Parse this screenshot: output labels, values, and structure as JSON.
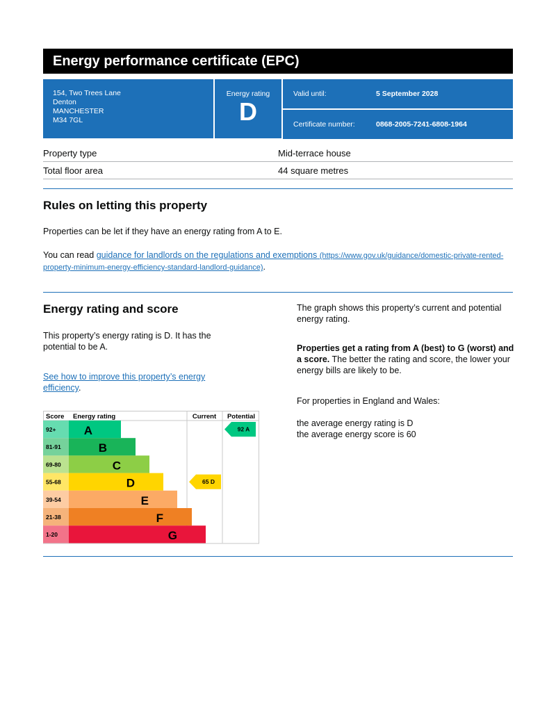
{
  "title": "Energy performance certificate (EPC)",
  "address": [
    "154, Two Trees Lane",
    "Denton",
    "MANCHESTER",
    "M34 7GL"
  ],
  "rating_label": "Energy rating",
  "rating": "D",
  "valid_label": "Valid until:",
  "valid_value": "5 September 2028",
  "cert_label": "Certificate number:",
  "cert_value": "0868-2005-7241-6808-1964",
  "property": [
    {
      "label": "Property type",
      "value": "Mid-terrace house"
    },
    {
      "label": "Total floor area",
      "value": "44 square metres"
    }
  ],
  "rules": {
    "heading": "Rules on letting this property",
    "p1": "Properties can be let if they have an energy rating from A to E.",
    "p2_pre": "You can read ",
    "p2_link": "guidance for landlords on the regulations and exemptions",
    "p2_url": "(https://www.gov.uk/guidance/domestic-private-rented-property-minimum-energy-efficiency-standard-landlord-guidance)",
    "p2_post": "."
  },
  "score": {
    "heading": "Energy rating and score",
    "p1": "This property’s energy rating is D. It has the potential to be A.",
    "link": "See how to improve this property’s energy efficiency",
    "link_post": ".",
    "r1": "The graph shows this property’s current and potential energy rating.",
    "r2_bold": "Properties get a rating from A (best) to G (worst) and a score.",
    "r2_rest": " The better the rating and score, the lower your energy bills are likely to be.",
    "r3": "For properties in England and Wales:",
    "r4": "the average energy rating is D",
    "r5": "the average energy score is 60"
  },
  "chart_data": {
    "type": "table",
    "headers": [
      "Score",
      "Energy rating",
      "Current",
      "Potential"
    ],
    "bands": [
      {
        "letter": "A",
        "range": "92+",
        "color": "#00c781",
        "tint": "#66dcb0"
      },
      {
        "letter": "B",
        "range": "81-91",
        "color": "#19b459",
        "tint": "#75d29b"
      },
      {
        "letter": "C",
        "range": "69-80",
        "color": "#8dce46",
        "tint": "#bbe290"
      },
      {
        "letter": "D",
        "range": "55-68",
        "color": "#ffd500",
        "tint": "#ffe666"
      },
      {
        "letter": "E",
        "range": "39-54",
        "color": "#fcaa65",
        "tint": "#fdcca3"
      },
      {
        "letter": "F",
        "range": "21-38",
        "color": "#ef8023",
        "tint": "#f5b37b"
      },
      {
        "letter": "G",
        "range": "1-20",
        "color": "#e9153b",
        "tint": "#f27389"
      }
    ],
    "current": {
      "score": 65,
      "letter": "D",
      "label": "65 D"
    },
    "potential": {
      "score": 92,
      "letter": "A",
      "label": "92 A"
    }
  }
}
